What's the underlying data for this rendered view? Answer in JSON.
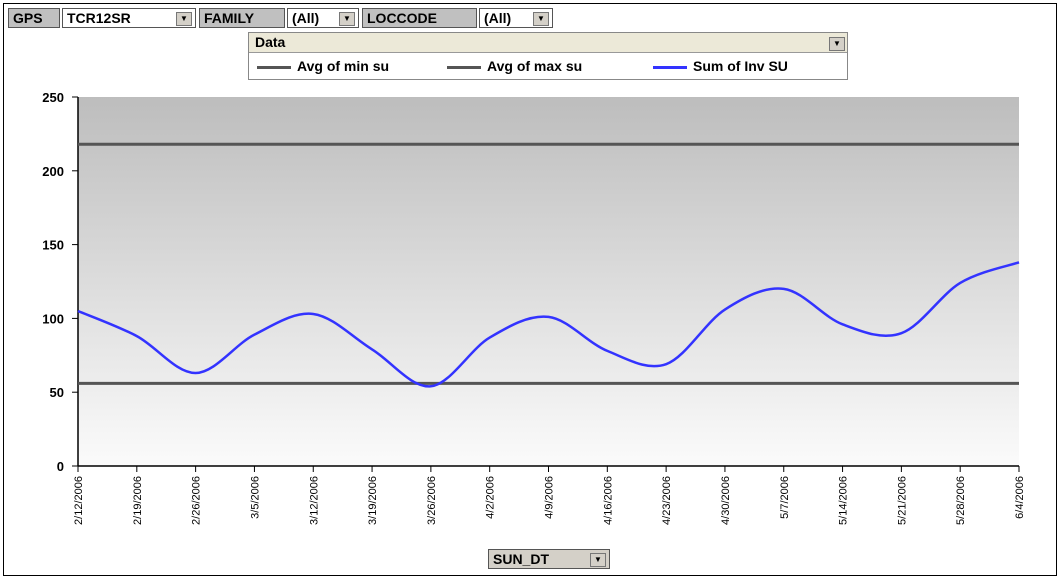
{
  "filters": [
    {
      "label": "GPS",
      "value": "TCR12SR"
    },
    {
      "label": "FAMILY",
      "value": "(All)"
    },
    {
      "label": "LOCCODE",
      "value": "(All)"
    }
  ],
  "legend": {
    "header": "Data",
    "items": [
      {
        "name": "Avg of min su",
        "color": "#555555"
      },
      {
        "name": "Avg of max su",
        "color": "#555555"
      },
      {
        "name": "Sum of Inv SU",
        "color": "#3333ff"
      }
    ]
  },
  "axis_button": "SUN_DT",
  "dropdown_glyph": "▼",
  "chart_data": {
    "type": "line",
    "x": [
      "2/12/2006",
      "2/19/2006",
      "2/26/2006",
      "3/5/2006",
      "3/12/2006",
      "3/19/2006",
      "3/26/2006",
      "4/2/2006",
      "4/9/2006",
      "4/16/2006",
      "4/23/2006",
      "4/30/2006",
      "5/7/2006",
      "5/14/2006",
      "5/21/2006",
      "5/28/2006",
      "6/4/2006"
    ],
    "series": [
      {
        "name": "Avg of min su",
        "values": [
          56,
          56,
          56,
          56,
          56,
          56,
          56,
          56,
          56,
          56,
          56,
          56,
          56,
          56,
          56,
          56,
          56
        ]
      },
      {
        "name": "Avg of max su",
        "values": [
          218,
          218,
          218,
          218,
          218,
          218,
          218,
          218,
          218,
          218,
          218,
          218,
          218,
          218,
          218,
          218,
          218
        ]
      },
      {
        "name": "Sum of Inv SU",
        "values": [
          105,
          88,
          63,
          89,
          103,
          79,
          54,
          87,
          101,
          78,
          69,
          106,
          120,
          96,
          90,
          124,
          138
        ]
      }
    ],
    "ylim": [
      0,
      250
    ],
    "yticks": [
      0,
      50,
      100,
      150,
      200,
      250
    ],
    "xlabel": "SUN_DT",
    "ylabel": "",
    "title": ""
  }
}
